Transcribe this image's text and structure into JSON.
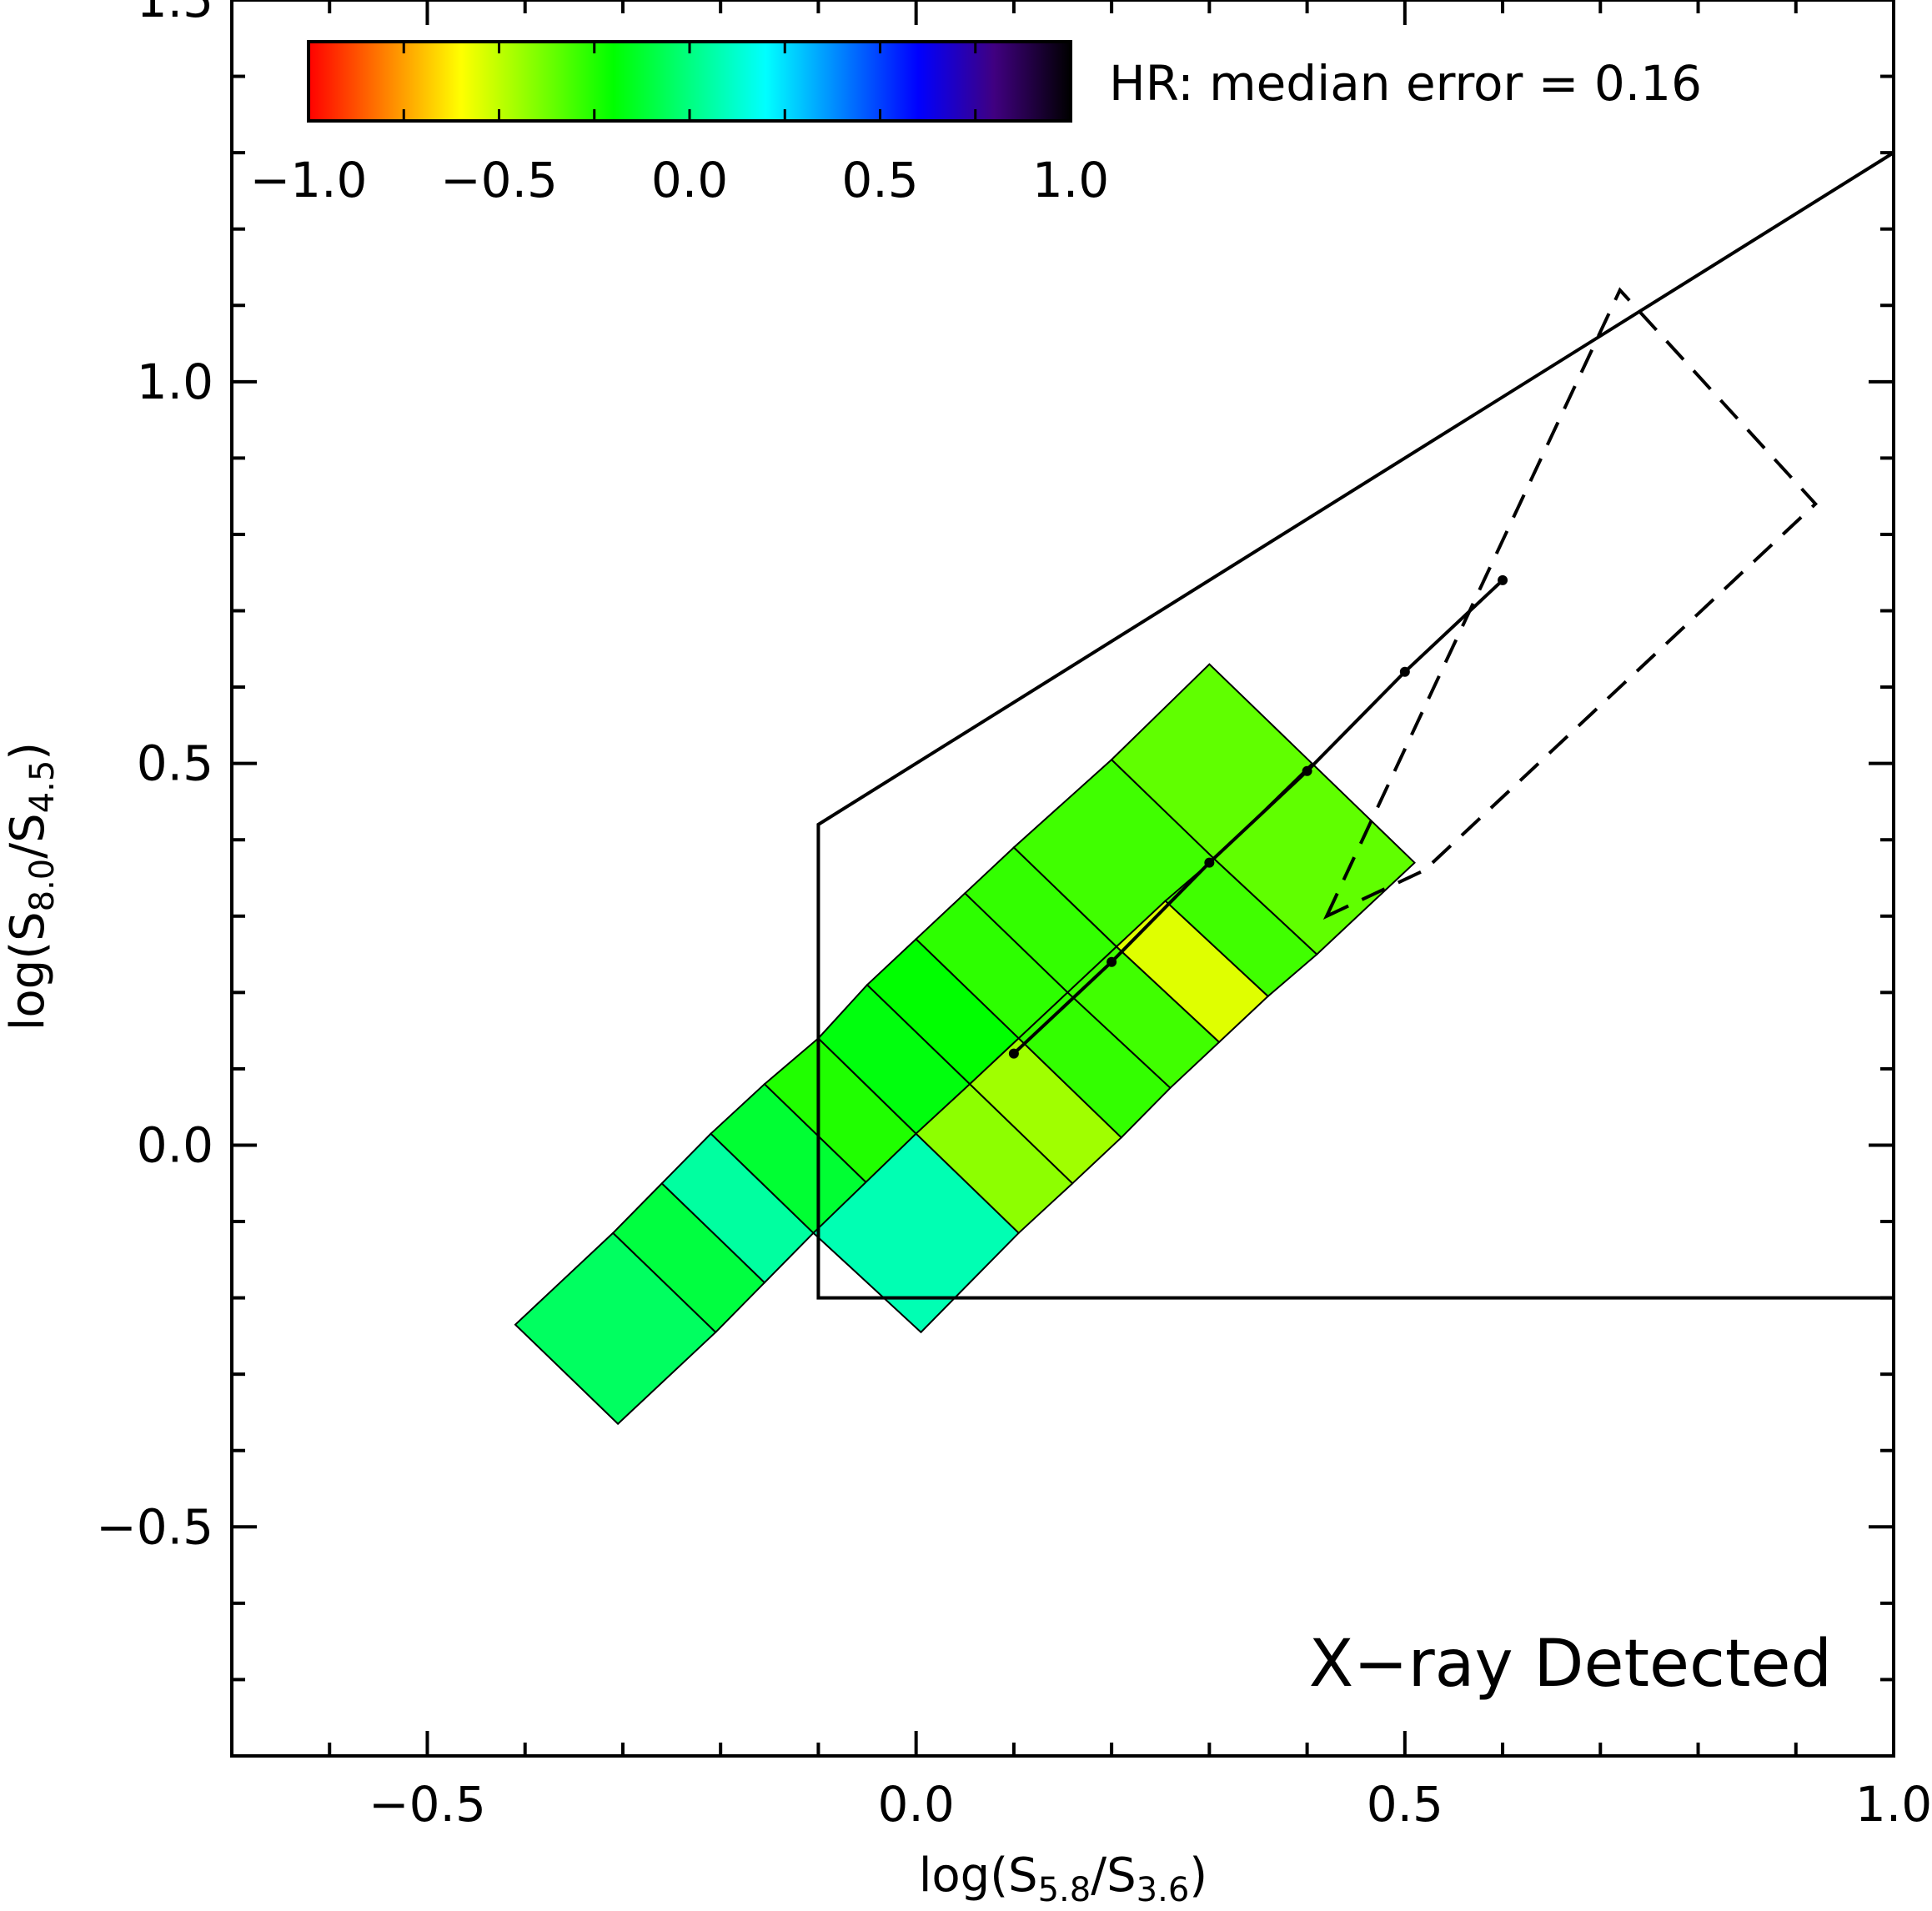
{
  "chart_data": {
    "type": "heatmap",
    "xlabel": {
      "main": "log(S",
      "sub1": "5.8",
      "mid": "/S",
      "sub2": "3.6",
      "end": ")"
    },
    "ylabel": {
      "main": "log(S",
      "sub1": "8.0",
      "mid": "/S",
      "sub2": "4.5",
      "end": ")"
    },
    "xlim": [
      -0.7,
      1.0
    ],
    "ylim": [
      -0.8,
      1.5
    ],
    "xticks": [
      {
        "v": -0.5,
        "label": "−0.5"
      },
      {
        "v": 0.0,
        "label": "0.0"
      },
      {
        "v": 0.5,
        "label": "0.5"
      },
      {
        "v": 1.0,
        "label": "1.0"
      }
    ],
    "yticks": [
      {
        "v": -0.5,
        "label": "−0.5"
      },
      {
        "v": 0.0,
        "label": "0.0"
      },
      {
        "v": 0.5,
        "label": "0.5"
      },
      {
        "v": 1.0,
        "label": "1.0"
      },
      {
        "v": 1.5,
        "label": "1.5"
      }
    ],
    "colorbar": {
      "range": [
        -1.0,
        1.0
      ],
      "ticks": [
        {
          "v": -1.0,
          "label": "−1.0"
        },
        {
          "v": -0.5,
          "label": "−0.5"
        },
        {
          "v": 0.0,
          "label": "0.0"
        },
        {
          "v": 0.5,
          "label": "0.5"
        },
        {
          "v": 1.0,
          "label": "1.0"
        }
      ],
      "stops": [
        "#ff0000",
        "#ff8000",
        "#ffff00",
        "#80ff00",
        "#00ff00",
        "#00ff80",
        "#00ffff",
        "#0080ff",
        "#0000ff",
        "#400080",
        "#000000"
      ]
    },
    "hr_label": "HR: median error = 0.16",
    "annotation": "X−ray Detected",
    "agn_wedge": [
      [
        -0.1,
        0.42
      ],
      [
        1.0,
        1.3
      ]
    ],
    "agn_wedge_bottom": [
      [
        -0.1,
        -0.2
      ],
      [
        1.0,
        -0.2
      ]
    ],
    "dashed_box": [
      [
        0.42,
        0.3
      ],
      [
        0.72,
        1.12
      ],
      [
        0.92,
        0.84
      ],
      [
        0.52,
        0.36
      ]
    ],
    "powerlaw_track": [
      [
        0.1,
        0.12
      ],
      [
        0.2,
        0.24
      ],
      [
        0.3,
        0.37
      ],
      [
        0.4,
        0.49
      ],
      [
        0.5,
        0.62
      ],
      [
        0.6,
        0.74
      ]
    ],
    "cells": [
      {
        "poly": [
          [
            -0.41,
            -0.235
          ],
          [
            -0.31,
            -0.115
          ],
          [
            -0.205,
            -0.245
          ],
          [
            -0.305,
            -0.365
          ]
        ],
        "hr": -0.05
      },
      {
        "poly": [
          [
            -0.31,
            -0.115
          ],
          [
            -0.26,
            -0.05
          ],
          [
            -0.155,
            -0.18
          ],
          [
            -0.205,
            -0.245
          ]
        ],
        "hr": -0.1
      },
      {
        "poly": [
          [
            -0.26,
            -0.05
          ],
          [
            -0.21,
            0.015
          ],
          [
            -0.105,
            -0.115
          ],
          [
            -0.155,
            -0.18
          ]
        ],
        "hr": 0.05
      },
      {
        "poly": [
          [
            -0.21,
            0.015
          ],
          [
            -0.155,
            0.08
          ],
          [
            -0.05,
            -0.05
          ],
          [
            -0.105,
            -0.115
          ]
        ],
        "hr": -0.12
      },
      {
        "poly": [
          [
            -0.155,
            0.08
          ],
          [
            -0.1,
            0.14
          ],
          [
            0.0,
            0.015
          ],
          [
            -0.05,
            -0.05
          ]
        ],
        "hr": -0.25
      },
      {
        "poly": [
          [
            -0.1,
            0.14
          ],
          [
            -0.05,
            0.21
          ],
          [
            0.055,
            0.08
          ],
          [
            0.0,
            0.015
          ]
        ],
        "hr": -0.18
      },
      {
        "poly": [
          [
            -0.05,
            0.21
          ],
          [
            0.0,
            0.27
          ],
          [
            0.105,
            0.14
          ],
          [
            0.055,
            0.08
          ]
        ],
        "hr": -0.2
      },
      {
        "poly": [
          [
            0.0,
            0.27
          ],
          [
            0.05,
            0.33
          ],
          [
            0.155,
            0.2
          ],
          [
            0.105,
            0.14
          ]
        ],
        "hr": -0.27
      },
      {
        "poly": [
          [
            0.05,
            0.33
          ],
          [
            0.1,
            0.39
          ],
          [
            0.205,
            0.26
          ],
          [
            0.155,
            0.2
          ]
        ],
        "hr": -0.28
      },
      {
        "poly": [
          [
            0.1,
            0.39
          ],
          [
            0.2,
            0.505
          ],
          [
            0.305,
            0.375
          ],
          [
            0.205,
            0.26
          ]
        ],
        "hr": -0.3
      },
      {
        "poly": [
          [
            0.2,
            0.505
          ],
          [
            0.3,
            0.63
          ],
          [
            0.405,
            0.5
          ],
          [
            0.305,
            0.375
          ]
        ],
        "hr": -0.35
      },
      {
        "poly": [
          [
            -0.105,
            -0.115
          ],
          [
            0.0,
            0.015
          ],
          [
            0.105,
            -0.115
          ],
          [
            0.005,
            -0.245
          ]
        ],
        "hr": 0.08
      },
      {
        "poly": [
          [
            0.0,
            0.015
          ],
          [
            0.055,
            0.08
          ],
          [
            0.16,
            -0.05
          ],
          [
            0.105,
            -0.115
          ]
        ],
        "hr": -0.42
      },
      {
        "poly": [
          [
            0.055,
            0.08
          ],
          [
            0.105,
            0.14
          ],
          [
            0.21,
            0.01
          ],
          [
            0.16,
            -0.05
          ]
        ],
        "hr": -0.45
      },
      {
        "poly": [
          [
            0.105,
            0.14
          ],
          [
            0.155,
            0.2
          ],
          [
            0.26,
            0.075
          ],
          [
            0.21,
            0.01
          ]
        ],
        "hr": -0.28
      },
      {
        "poly": [
          [
            0.155,
            0.2
          ],
          [
            0.205,
            0.26
          ],
          [
            0.31,
            0.135
          ],
          [
            0.26,
            0.075
          ]
        ],
        "hr": -0.3
      },
      {
        "poly": [
          [
            0.205,
            0.26
          ],
          [
            0.255,
            0.32
          ],
          [
            0.36,
            0.195
          ],
          [
            0.31,
            0.135
          ]
        ],
        "hr": -0.55
      },
      {
        "poly": [
          [
            0.255,
            0.32
          ],
          [
            0.305,
            0.375
          ],
          [
            0.41,
            0.25
          ],
          [
            0.36,
            0.195
          ]
        ],
        "hr": -0.3
      },
      {
        "poly": [
          [
            0.305,
            0.375
          ],
          [
            0.405,
            0.5
          ],
          [
            0.51,
            0.37
          ],
          [
            0.41,
            0.25
          ]
        ],
        "hr": -0.35
      }
    ]
  }
}
